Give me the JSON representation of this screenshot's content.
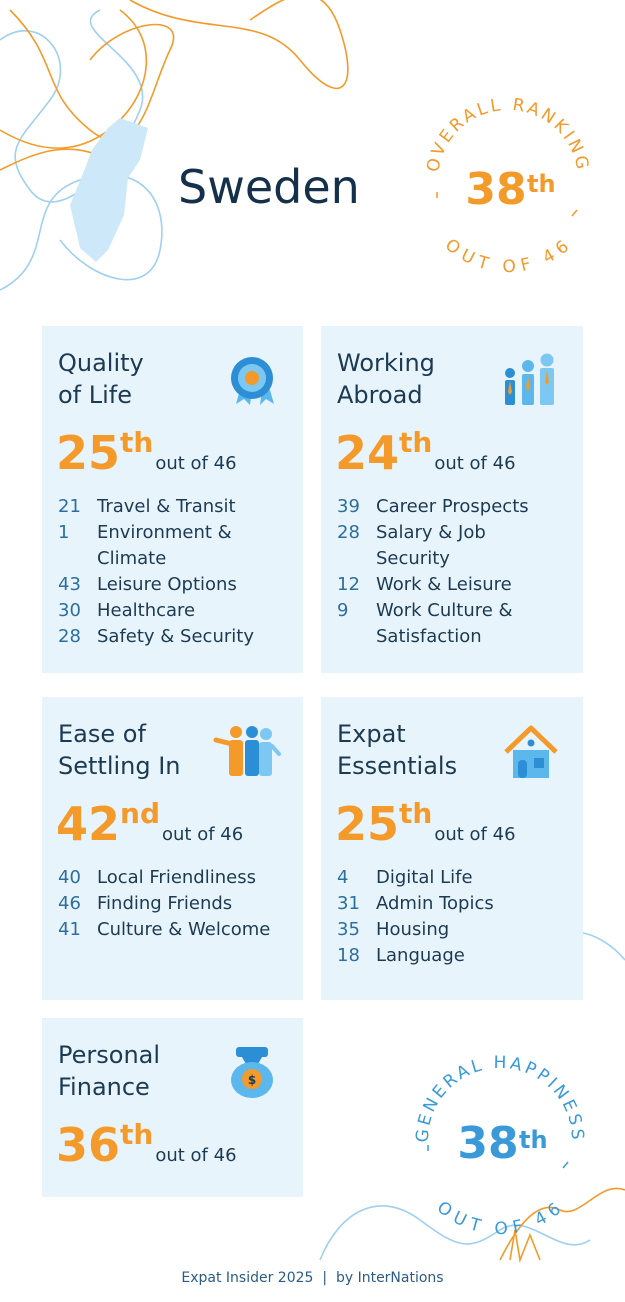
{
  "country": "Sweden",
  "overall": {
    "top": "OVERALL RANKING",
    "rank": 38,
    "suffix": "th",
    "bottom": "OUT OF 46"
  },
  "happiness": {
    "top": "GENERAL HAPPINESS",
    "rank": 38,
    "suffix": "th",
    "bottom": "OUT OF 46"
  },
  "cards": [
    {
      "title_lines": [
        "Quality",
        "of Life"
      ],
      "rank": 25,
      "suffix": "th",
      "out_of": "out of 46",
      "items": [
        {
          "rank": 21,
          "label_lines": [
            "Travel & Transit"
          ]
        },
        {
          "rank": 1,
          "label_lines": [
            "Environment &",
            "Climate"
          ]
        },
        {
          "rank": 43,
          "label_lines": [
            "Leisure Options"
          ]
        },
        {
          "rank": 30,
          "label_lines": [
            "Healthcare"
          ]
        },
        {
          "rank": 28,
          "label_lines": [
            "Safety & Security"
          ]
        }
      ]
    },
    {
      "title_lines": [
        "Working",
        "Abroad"
      ],
      "rank": 24,
      "suffix": "th",
      "out_of": "out of 46",
      "items": [
        {
          "rank": 39,
          "label_lines": [
            "Career Prospects"
          ]
        },
        {
          "rank": 28,
          "label_lines": [
            "Salary & Job",
            "Security"
          ]
        },
        {
          "rank": 12,
          "label_lines": [
            "Work & Leisure"
          ]
        },
        {
          "rank": 9,
          "label_lines": [
            "Work Culture &",
            "Satisfaction"
          ]
        }
      ]
    },
    {
      "title_lines": [
        "Ease of",
        "Settling In"
      ],
      "rank": 42,
      "suffix": "nd",
      "out_of": "out of 46",
      "items": [
        {
          "rank": 40,
          "label_lines": [
            "Local Friendliness"
          ]
        },
        {
          "rank": 46,
          "label_lines": [
            "Finding Friends"
          ]
        },
        {
          "rank": 41,
          "label_lines": [
            "Culture & Welcome"
          ]
        }
      ]
    },
    {
      "title_lines": [
        "Expat",
        "Essentials"
      ],
      "rank": 25,
      "suffix": "th",
      "out_of": "out of 46",
      "items": [
        {
          "rank": 4,
          "label_lines": [
            "Digital Life"
          ]
        },
        {
          "rank": 31,
          "label_lines": [
            "Admin Topics"
          ]
        },
        {
          "rank": 35,
          "label_lines": [
            "Housing"
          ]
        },
        {
          "rank": 18,
          "label_lines": [
            "Language"
          ]
        }
      ]
    },
    {
      "title_lines": [
        "Personal",
        "Finance"
      ],
      "rank": 36,
      "suffix": "th",
      "out_of": "out of 46",
      "items": []
    }
  ],
  "footer": "Expat Insider 2025  |  by InterNations"
}
